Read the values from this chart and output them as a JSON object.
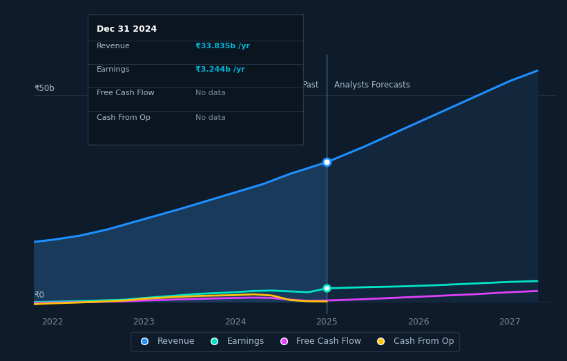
{
  "background_color": "#0d1b2a",
  "plot_bg_color": "#0d1b2a",
  "ylabel_50b": "₹50b",
  "ylabel_0": "₹0",
  "xlabel_years": [
    "2022",
    "2023",
    "2024",
    "2025",
    "2026",
    "2027"
  ],
  "divider_x": 2025.0,
  "past_label": "Past",
  "forecast_label": "Analysts Forecasts",
  "revenue": {
    "x": [
      2021.8,
      2022.0,
      2022.3,
      2022.6,
      2023.0,
      2023.4,
      2023.7,
      2024.0,
      2024.3,
      2024.6,
      2025.0,
      2025.4,
      2025.8,
      2026.2,
      2026.6,
      2027.0,
      2027.3
    ],
    "y": [
      14.5,
      15.0,
      16.0,
      17.5,
      20.0,
      22.5,
      24.5,
      26.5,
      28.5,
      31.0,
      33.835,
      37.5,
      41.5,
      45.5,
      49.5,
      53.5,
      56.0
    ],
    "color": "#1e90ff",
    "fill_past_color": "#1a3a5c",
    "fill_future_color": "#152a40",
    "marker_x": 2025.0,
    "marker_y": 33.835,
    "label": "Revenue"
  },
  "earnings": {
    "x": [
      2021.8,
      2022.0,
      2022.4,
      2022.8,
      2023.0,
      2023.3,
      2023.6,
      2024.0,
      2024.2,
      2024.4,
      2024.6,
      2024.8,
      2025.0,
      2025.4,
      2025.8,
      2026.2,
      2026.6,
      2027.0,
      2027.3
    ],
    "y": [
      -0.1,
      0.0,
      0.2,
      0.5,
      0.9,
      1.4,
      1.9,
      2.3,
      2.6,
      2.7,
      2.5,
      2.3,
      3.244,
      3.5,
      3.7,
      4.0,
      4.4,
      4.8,
      5.0
    ],
    "color": "#00e5c8",
    "marker_x": 2025.0,
    "marker_y": 3.244,
    "label": "Earnings"
  },
  "free_cash_flow": {
    "x": [
      2021.8,
      2022.0,
      2022.4,
      2022.8,
      2023.0,
      2023.3,
      2023.6,
      2024.0,
      2024.2,
      2024.4,
      2024.6,
      2024.8,
      2025.0,
      2025.4,
      2025.8,
      2026.2,
      2026.6,
      2027.0,
      2027.3
    ],
    "y": [
      -0.3,
      -0.2,
      -0.1,
      0.1,
      0.3,
      0.5,
      0.7,
      0.9,
      1.0,
      0.9,
      0.5,
      0.2,
      0.3,
      0.6,
      1.0,
      1.4,
      1.8,
      2.3,
      2.6
    ],
    "color": "#e040fb",
    "label": "Free Cash Flow"
  },
  "cash_from_op": {
    "x": [
      2021.8,
      2022.0,
      2022.4,
      2022.8,
      2023.0,
      2023.3,
      2023.6,
      2024.0,
      2024.2,
      2024.4,
      2024.6,
      2024.8,
      2025.0
    ],
    "y": [
      -0.6,
      -0.4,
      -0.1,
      0.3,
      0.7,
      1.1,
      1.4,
      1.6,
      1.8,
      1.5,
      0.4,
      0.1,
      0.05
    ],
    "color": "#ffc107",
    "label": "Cash From Op"
  },
  "tooltip": {
    "date": "Dec 31 2024",
    "revenue_label": "Revenue",
    "revenue_val": "₹33.835b /yr",
    "earnings_label": "Earnings",
    "earnings_val": "₹3.244b /yr",
    "fcf_label": "Free Cash Flow",
    "fcf_val": "No data",
    "cfo_label": "Cash From Op",
    "cfo_val": "No data",
    "revenue_color": "#00b4d8",
    "earnings_color": "#00b4d8",
    "nodata_color": "#7a8a9a",
    "label_color": "#aabbcc",
    "header_color": "#ffffff",
    "bg_color": "#0a1520",
    "border_color": "#2a3a4a",
    "divider_color": "#2a3a4a"
  },
  "xlim": [
    2021.8,
    2027.5
  ],
  "ylim": [
    -3,
    60
  ],
  "tick_color": "#7a8a9a",
  "font_color": "#aabbcc",
  "grid_color": "#1e2e3e",
  "divider_line_color": "#4a6a8a"
}
